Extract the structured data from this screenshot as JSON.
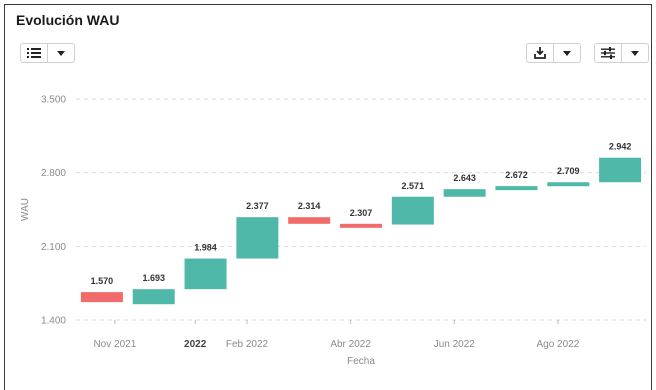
{
  "header": {
    "title": "Evolución WAU"
  },
  "toolbar": {
    "left": {
      "icon": "list-icon",
      "dropdown_icon": "chevron-down-icon"
    },
    "right_download": {
      "icon": "download-icon",
      "dropdown_icon": "chevron-down-icon"
    },
    "right_settings": {
      "icon": "sliders-icon",
      "dropdown_icon": "chevron-down-icon"
    }
  },
  "colors": {
    "increase": "#4fb8a8",
    "decrease": "#f26b6b",
    "grid": "#d9d9d9"
  },
  "chart_data": {
    "type": "waterfall",
    "ylabel": "WAU",
    "xlabel": "Fecha",
    "ylim": [
      1400,
      3500
    ],
    "yticks": [
      1400,
      2100,
      2800,
      3500
    ],
    "ytick_labels": [
      "1.400",
      "2.100",
      "2.800",
      "3.500"
    ],
    "xticks": [
      {
        "label": "Nov 2021",
        "index": 0.75,
        "bold": false
      },
      {
        "label": "2022",
        "index": 2.3,
        "bold": true
      },
      {
        "label": "Feb 2022",
        "index": 3.3,
        "bold": false
      },
      {
        "label": "Abr 2022",
        "index": 5.3,
        "bold": false
      },
      {
        "label": "Jun 2022",
        "index": 7.3,
        "bold": false
      },
      {
        "label": "Ago 2022",
        "index": 9.3,
        "bold": false
      }
    ],
    "bars": [
      {
        "label": "1.570",
        "start": 1665,
        "end": 1570
      },
      {
        "label": "1.693",
        "start": 1550,
        "end": 1693
      },
      {
        "label": "1.984",
        "start": 1693,
        "end": 1984
      },
      {
        "label": "2.377",
        "start": 1984,
        "end": 2377
      },
      {
        "label": "2.314",
        "start": 2377,
        "end": 2314
      },
      {
        "label": "2.307",
        "start": 2314,
        "end": 2307
      },
      {
        "label": "2.571",
        "start": 2307,
        "end": 2571
      },
      {
        "label": "2.643",
        "start": 2571,
        "end": 2643
      },
      {
        "label": "2.672",
        "start": 2643,
        "end": 2672
      },
      {
        "label": "2.709",
        "start": 2672,
        "end": 2709
      },
      {
        "label": "2.942",
        "start": 2709,
        "end": 2942
      }
    ]
  }
}
